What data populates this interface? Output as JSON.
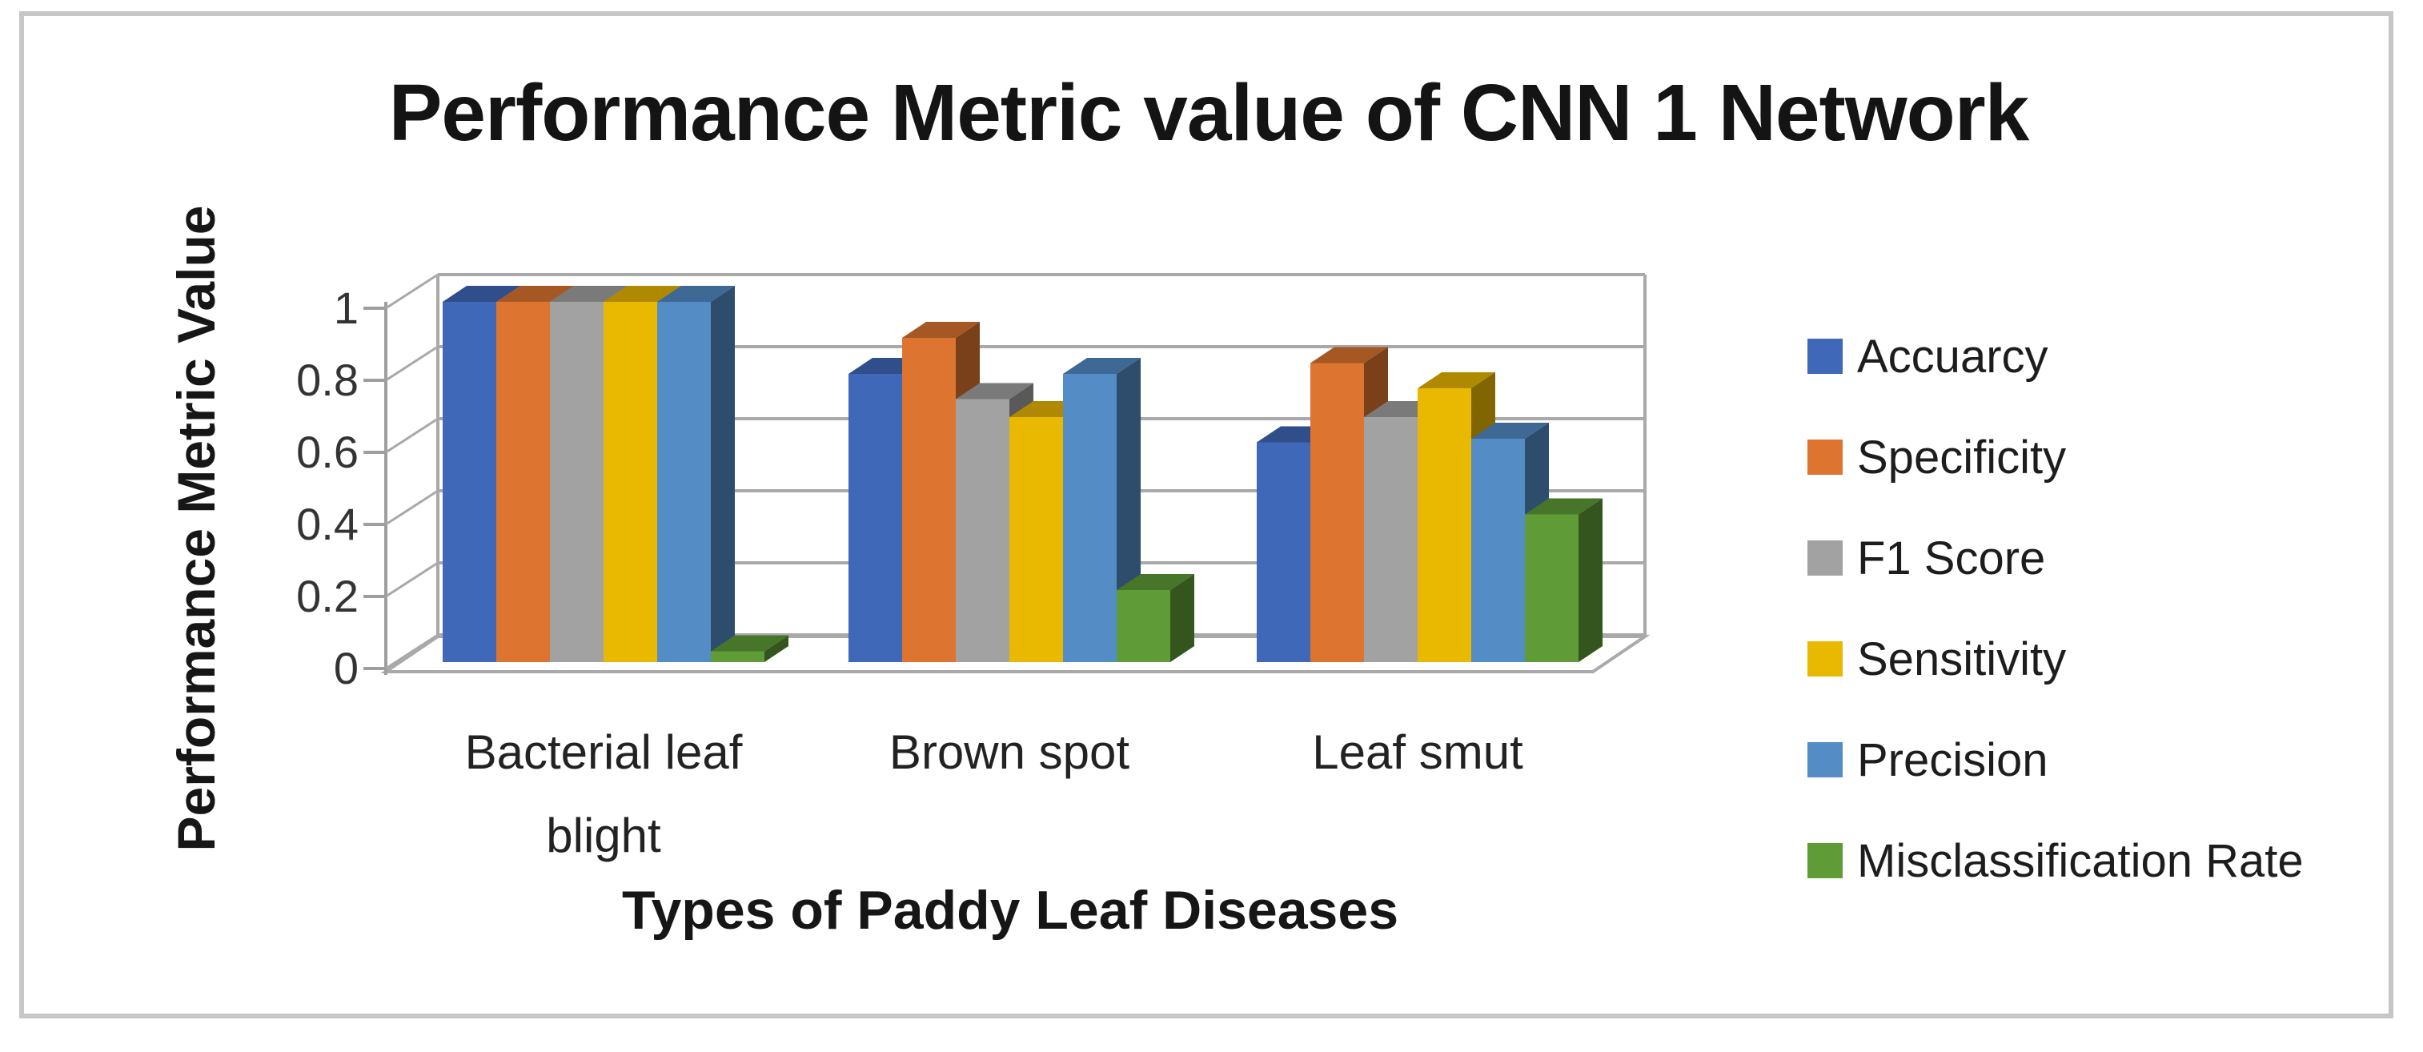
{
  "chart_data": {
    "type": "bar",
    "subtype": "3d-clustered-column",
    "title": "Performance Metric value of CNN 1 Network",
    "xlabel": "Types of Paddy Leaf Diseases",
    "ylabel": "Performance Metric Value",
    "categories": [
      "Bacterial leaf blight",
      "Brown spot",
      "Leaf smut"
    ],
    "series": [
      {
        "name": "Accuarcy",
        "color": "#3f68b8",
        "values": [
          1.0,
          0.8,
          0.61
        ]
      },
      {
        "name": "Specificity",
        "color": "#dd7530",
        "values": [
          1.0,
          0.9,
          0.83
        ]
      },
      {
        "name": "F1 Score",
        "color": "#a2a2a2",
        "values": [
          1.0,
          0.73,
          0.68
        ]
      },
      {
        "name": "Sensitivity",
        "color": "#e9b800",
        "values": [
          1.0,
          0.68,
          0.76
        ]
      },
      {
        "name": "Precision",
        "color": "#548cc6",
        "values": [
          1.0,
          0.8,
          0.62
        ]
      },
      {
        "name": "Misclassification Rate",
        "color": "#5f9c37",
        "values": [
          0.03,
          0.2,
          0.41
        ]
      }
    ],
    "yticks": [
      0,
      0.2,
      0.4,
      0.6,
      0.8,
      1
    ],
    "ytick_labels": [
      "0",
      "0.2",
      "0.4",
      "0.6",
      "0.8",
      "1"
    ],
    "ylim": [
      0,
      1
    ],
    "grid": true,
    "legend_position": "right",
    "colors": {
      "gridline": "#a9a9a9",
      "axis": "#9e9e9e",
      "frame_border": "#c6c6c6",
      "text": "#1c1c1c"
    }
  }
}
